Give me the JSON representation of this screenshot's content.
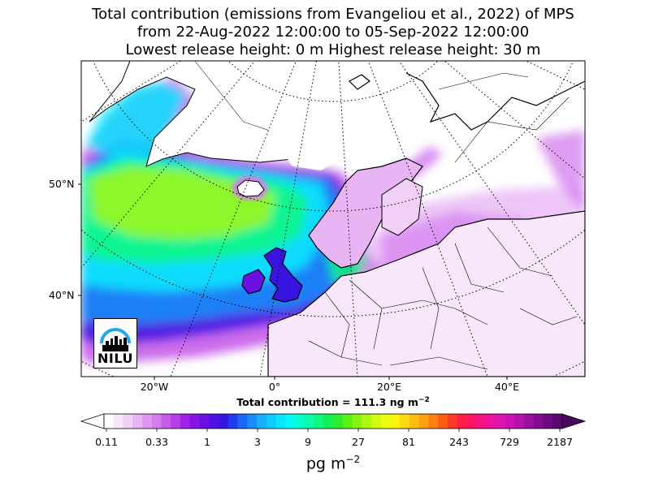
{
  "title": {
    "line1": "Total contribution (emissions from Evangeliou et al., 2022) of MPS",
    "line2": "from 22-Aug-2022 12:00:00 to 05-Sep-2022 12:00:00",
    "line3": "Lowest release height: 0 m      Highest release height: 30 m"
  },
  "lat_labels": [
    "50°N",
    "40°N"
  ],
  "lon_labels": [
    "20°W",
    "0°",
    "20°E",
    "40°E"
  ],
  "total_label": "Total contribution = 111.3 ng m",
  "total_label_exp": "−2",
  "colorbar": {
    "ticks": [
      "0.11",
      "0.33",
      "1",
      "3",
      "9",
      "27",
      "81",
      "243",
      "729",
      "2187"
    ],
    "unit": "pg m",
    "unit_exp": "−2",
    "colors": [
      "#ffffff",
      "#f8e6fb",
      "#f1cff7",
      "#e8b4f4",
      "#df98f1",
      "#d47bed",
      "#c65cea",
      "#b43ee8",
      "#9f22e6",
      "#8714e4",
      "#6c0fe2",
      "#5010e1",
      "#3a14e1",
      "#1e3cf0",
      "#1a66f6",
      "#1a8cfa",
      "#18aefc",
      "#10ccfe",
      "#08e6fe",
      "#06f8f2",
      "#08fcce",
      "#0afca8",
      "#0ef880",
      "#12f058",
      "#2cee30",
      "#5cf014",
      "#86f410",
      "#aef810",
      "#d0fc10",
      "#eefc10",
      "#fcf410",
      "#fcd810",
      "#fcbc10",
      "#fca010",
      "#fc8010",
      "#fc5c14",
      "#fc3a28",
      "#fc1e46",
      "#fc1464",
      "#f61482",
      "#ec149c",
      "#e014b0",
      "#cc14b4",
      "#b414ac",
      "#9a109e",
      "#820c8e",
      "#6c0a7e",
      "#5a0870"
    ],
    "extend_min_color": "#ffffff",
    "extend_max_color": "#4a0560"
  },
  "logo": {
    "text": "NILU",
    "arc_color": "#21a8e6"
  },
  "map": {
    "land_outline_color": "#000000",
    "graticule_style": "dotted",
    "plume_colors": [
      "#6c0fe2",
      "#1a8cfa",
      "#08e6fe",
      "#0ef880",
      "#aef810",
      "#c65cea",
      "#df98f1"
    ]
  }
}
